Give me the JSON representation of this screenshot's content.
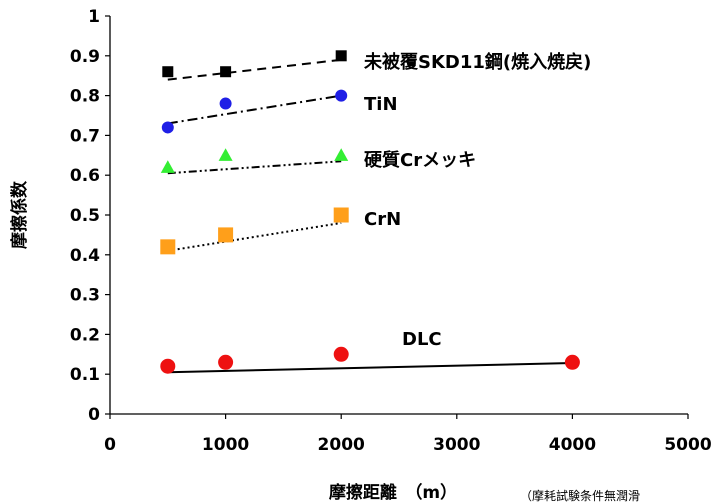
{
  "chart_data": {
    "type": "scatter",
    "xlabel": "摩擦距離　（m）",
    "ylabel": "摩擦係数",
    "xlim": [
      0,
      5000
    ],
    "ylim": [
      0,
      1
    ],
    "x_ticks": [
      "0",
      "1000",
      "2000",
      "3000",
      "4000",
      "5000"
    ],
    "y_ticks": [
      "0",
      "0.1",
      "0.2",
      "0.3",
      "0.4",
      "0.5",
      "0.6",
      "0.7",
      "0.8",
      "0.9",
      "1"
    ],
    "grid": false,
    "series": [
      {
        "name": "未被覆SKD11鋼(焼入焼戻)",
        "marker": "square",
        "color": "#000000",
        "line_style": "dashed",
        "x": [
          500,
          1000,
          2000
        ],
        "y": [
          0.86,
          0.86,
          0.9
        ],
        "trendline": [
          [
            500,
            0.84
          ],
          [
            2000,
            0.89
          ]
        ]
      },
      {
        "name": "TiN",
        "marker": "circle",
        "color": "#1f1fe6",
        "line_style": "dash-dot",
        "x": [
          500,
          1000,
          2000
        ],
        "y": [
          0.72,
          0.78,
          0.8
        ],
        "trendline": [
          [
            500,
            0.73
          ],
          [
            2000,
            0.8
          ]
        ]
      },
      {
        "name": "硬質Crメッキ",
        "marker": "triangle",
        "color": "#33ee33",
        "line_style": "dash-dot-dot",
        "x": [
          500,
          1000,
          2000
        ],
        "y": [
          0.62,
          0.65,
          0.65
        ],
        "trendline": [
          [
            500,
            0.605
          ],
          [
            2000,
            0.635
          ]
        ]
      },
      {
        "name": "CrN",
        "marker": "square",
        "color": "#ff9f1a",
        "line_style": "dotted",
        "x": [
          500,
          1000,
          2000
        ],
        "y": [
          0.42,
          0.45,
          0.5
        ],
        "trendline": [
          [
            500,
            0.41
          ],
          [
            2000,
            0.48
          ]
        ]
      },
      {
        "name": "DLC",
        "marker": "circle",
        "color": "#ee1111",
        "line_style": "solid",
        "x": [
          500,
          1000,
          2000,
          4000
        ],
        "y": [
          0.12,
          0.13,
          0.15,
          0.13
        ],
        "trendline": [
          [
            500,
            0.105
          ],
          [
            4000,
            0.128
          ]
        ]
      }
    ],
    "note": "（摩耗試験条件無潤滑"
  }
}
